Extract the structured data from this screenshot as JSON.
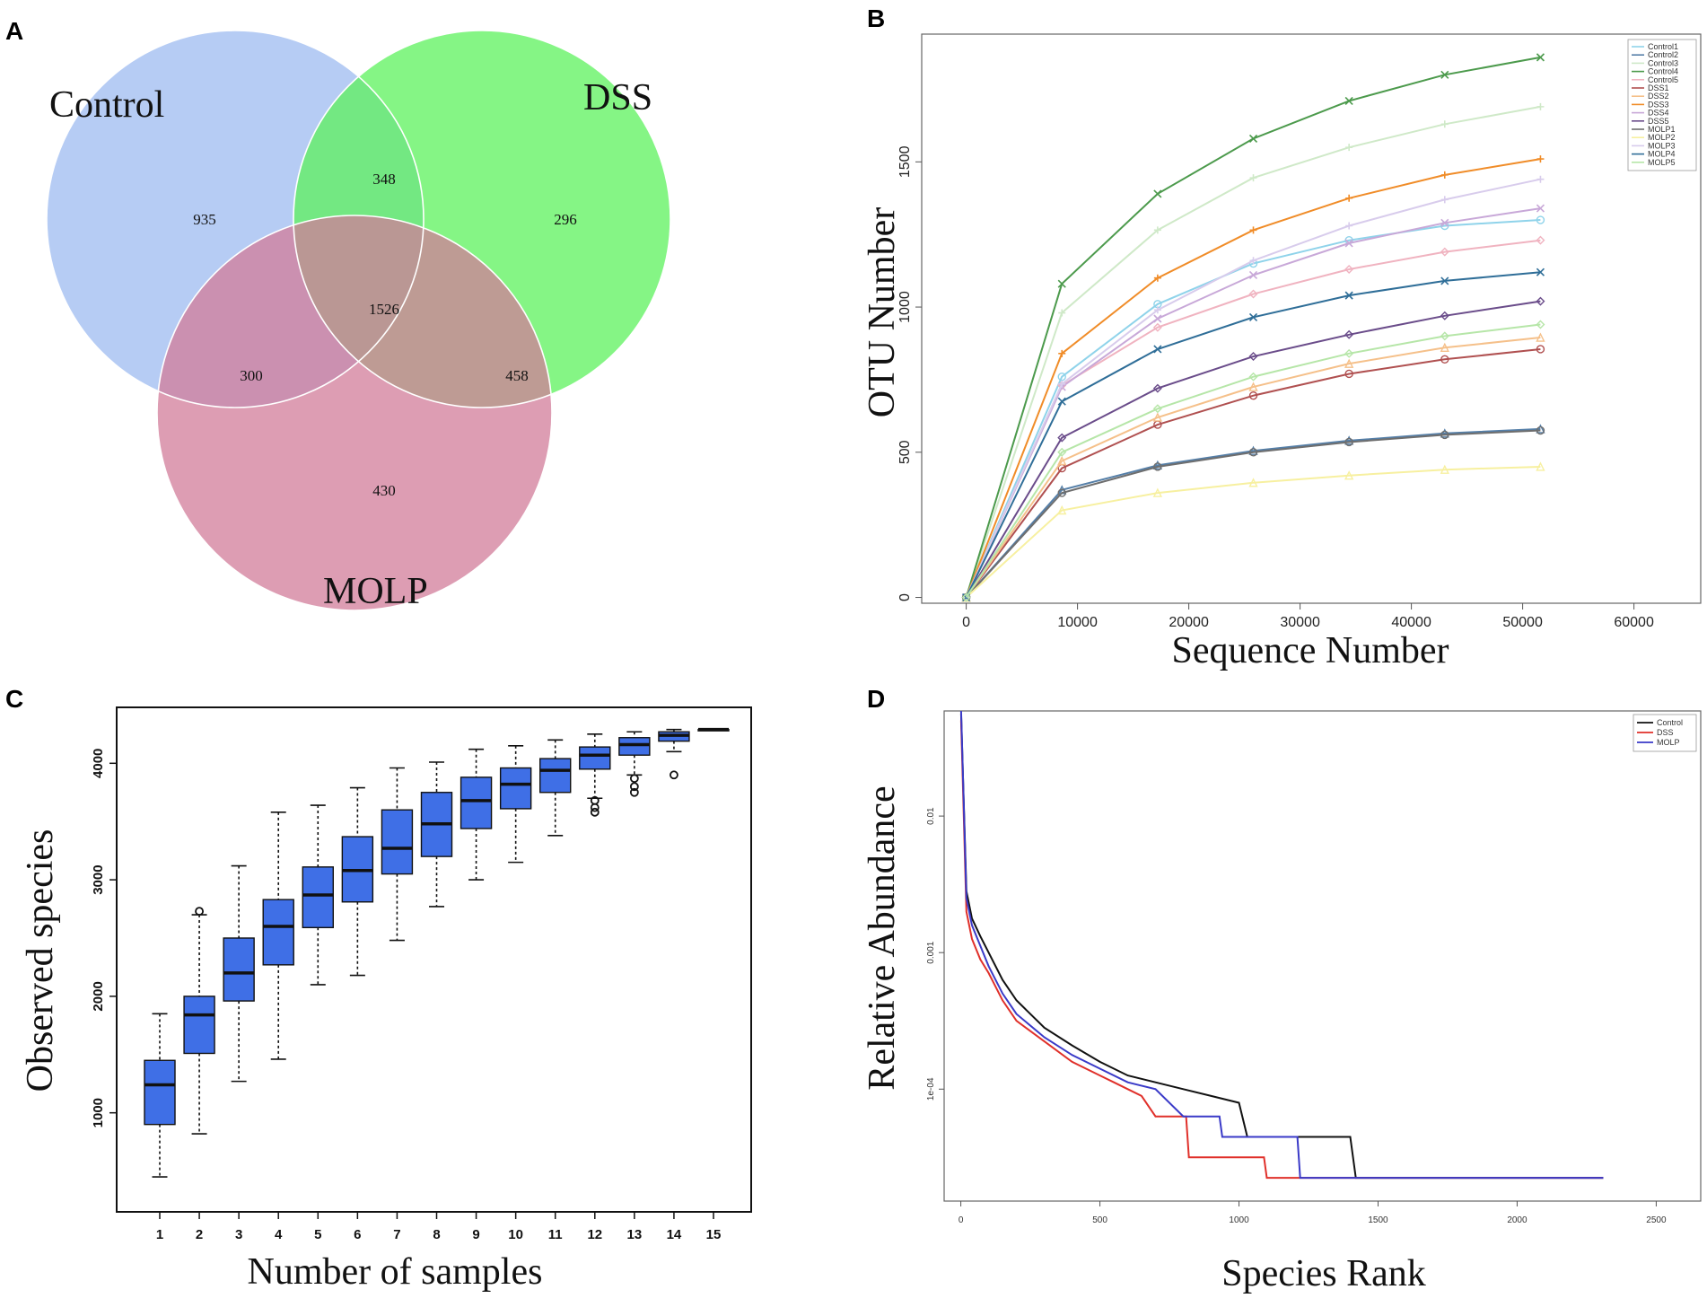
{
  "panels": {
    "a": "A",
    "b": "B",
    "c": "C",
    "d": "D"
  },
  "venn": {
    "labels": {
      "control": "Control",
      "dss": "DSS",
      "molp": "MOLP"
    },
    "colors": {
      "control": "#9dbbf0",
      "dss": "#5cf25c",
      "molp": "#d27c9a"
    },
    "counts": {
      "control_only": "935",
      "dss_only": "296",
      "molp_only": "430",
      "control_dss": "348",
      "control_molp": "300",
      "dss_molp": "458",
      "all": "1526"
    }
  },
  "chart_data": [
    {
      "panel": "B",
      "type": "line",
      "xlabel": "Sequence Number",
      "ylabel": "OTU Number",
      "xlim": [
        -4000,
        66000
      ],
      "ylim": [
        -20,
        1940
      ],
      "xticks": [
        0,
        10000,
        20000,
        30000,
        40000,
        50000,
        60000
      ],
      "yticks": [
        0,
        500,
        1000,
        1500
      ],
      "x": [
        0,
        8600,
        17200,
        25800,
        34400,
        43000,
        51600
      ],
      "series": [
        {
          "name": "Control1",
          "color": "#8fd3ea",
          "values": [
            0,
            760,
            1010,
            1150,
            1230,
            1280,
            1300
          ]
        },
        {
          "name": "Control2",
          "color": "#557fa8",
          "values": [
            0,
            370,
            455,
            505,
            540,
            565,
            580
          ]
        },
        {
          "name": "Control3",
          "color": "#cfe9c8",
          "values": [
            0,
            980,
            1265,
            1445,
            1550,
            1630,
            1690
          ]
        },
        {
          "name": "Control4",
          "color": "#4c9a4c",
          "values": [
            0,
            1080,
            1390,
            1580,
            1710,
            1800,
            1860
          ]
        },
        {
          "name": "Control5",
          "color": "#f0b3c0",
          "values": [
            0,
            730,
            930,
            1045,
            1130,
            1190,
            1230
          ]
        },
        {
          "name": "DSS1",
          "color": "#b05050",
          "values": [
            0,
            445,
            595,
            695,
            770,
            820,
            855
          ]
        },
        {
          "name": "DSS2",
          "color": "#f5c08a",
          "values": [
            0,
            470,
            620,
            725,
            805,
            860,
            895
          ]
        },
        {
          "name": "DSS3",
          "color": "#f08c28",
          "values": [
            0,
            840,
            1100,
            1265,
            1375,
            1455,
            1510
          ]
        },
        {
          "name": "DSS4",
          "color": "#c8a8d8",
          "values": [
            0,
            725,
            960,
            1110,
            1220,
            1290,
            1340
          ]
        },
        {
          "name": "DSS5",
          "color": "#6a4c8a",
          "values": [
            0,
            550,
            720,
            830,
            905,
            970,
            1020
          ]
        },
        {
          "name": "MOLP1",
          "color": "#6e6e6e",
          "values": [
            0,
            360,
            450,
            500,
            535,
            560,
            575
          ]
        },
        {
          "name": "MOLP2",
          "color": "#f7f0a0",
          "values": [
            0,
            300,
            360,
            395,
            420,
            440,
            450
          ]
        },
        {
          "name": "MOLP3",
          "color": "#d8ccec",
          "values": [
            0,
            735,
            990,
            1160,
            1280,
            1370,
            1440
          ]
        },
        {
          "name": "MOLP4",
          "color": "#2f6e98",
          "values": [
            0,
            675,
            855,
            965,
            1040,
            1090,
            1120
          ]
        },
        {
          "name": "MOLP5",
          "color": "#b6e6a8",
          "values": [
            0,
            500,
            650,
            760,
            840,
            900,
            940
          ]
        }
      ]
    },
    {
      "panel": "C",
      "type": "box",
      "xlabel": "Number of samples",
      "ylabel": "Observed species",
      "ylim": [
        150,
        4480
      ],
      "yticks": [
        1000,
        2000,
        3000,
        4000
      ],
      "categories": [
        "1",
        "2",
        "3",
        "4",
        "5",
        "6",
        "7",
        "8",
        "9",
        "10",
        "11",
        "12",
        "13",
        "14",
        "15"
      ],
      "box_color": "#3f6fe6",
      "boxes": [
        {
          "min": 450,
          "q1": 900,
          "median": 1240,
          "q3": 1450,
          "max": 1850
        },
        {
          "min": 820,
          "q1": 1510,
          "median": 1840,
          "q3": 2000,
          "max": 2700
        },
        {
          "min": 1270,
          "q1": 1960,
          "median": 2200,
          "q3": 2500,
          "max": 3120
        },
        {
          "min": 1460,
          "q1": 2270,
          "median": 2600,
          "q3": 2830,
          "max": 3580
        },
        {
          "min": 2100,
          "q1": 2590,
          "median": 2870,
          "q3": 3110,
          "max": 3640
        },
        {
          "min": 2180,
          "q1": 2810,
          "median": 3080,
          "q3": 3370,
          "max": 3790
        },
        {
          "min": 2480,
          "q1": 3050,
          "median": 3270,
          "q3": 3600,
          "max": 3960
        },
        {
          "min": 2770,
          "q1": 3200,
          "median": 3480,
          "q3": 3750,
          "max": 4010
        },
        {
          "min": 3000,
          "q1": 3440,
          "median": 3680,
          "q3": 3880,
          "max": 4120
        },
        {
          "min": 3150,
          "q1": 3610,
          "median": 3820,
          "q3": 3960,
          "max": 4150
        },
        {
          "min": 3380,
          "q1": 3750,
          "median": 3940,
          "q3": 4040,
          "max": 4200
        },
        {
          "min": 3700,
          "q1": 3950,
          "median": 4070,
          "q3": 4140,
          "max": 4250
        },
        {
          "min": 3900,
          "q1": 4070,
          "median": 4160,
          "q3": 4220,
          "max": 4270
        },
        {
          "min": 4100,
          "q1": 4190,
          "median": 4240,
          "q3": 4270,
          "max": 4290
        },
        {
          "min": 4290,
          "q1": 4290,
          "median": 4290,
          "q3": 4290,
          "max": 4290
        }
      ],
      "outliers": [
        {
          "box": "2",
          "value": 2730
        },
        {
          "box": "12",
          "value": 3680
        },
        {
          "box": "12",
          "value": 3620
        },
        {
          "box": "12",
          "value": 3580
        },
        {
          "box": "13",
          "value": 3870
        },
        {
          "box": "13",
          "value": 3800
        },
        {
          "box": "13",
          "value": 3750
        },
        {
          "box": "14",
          "value": 3900
        }
      ]
    },
    {
      "panel": "D",
      "type": "line",
      "scale": "log",
      "xlabel": "Species Rank",
      "ylabel": "Relative Abundance",
      "xlim": [
        -60,
        2660
      ],
      "ylim_log10": [
        -4.82,
        -1.23
      ],
      "xticks": [
        0,
        500,
        1000,
        1500,
        2000,
        2500
      ],
      "yticks": [
        {
          "label": "0.01",
          "log10": -2
        },
        {
          "label": "0.001",
          "log10": -3
        },
        {
          "label": "1e-04",
          "log10": -4
        }
      ],
      "series": [
        {
          "name": "Control",
          "color": "#111111",
          "x": [
            1,
            20,
            40,
            70,
            100,
            150,
            200,
            300,
            400,
            500,
            600,
            700,
            800,
            900,
            1000,
            1030,
            1400,
            1420,
            2310
          ],
          "log10": [
            -1.25,
            -2.55,
            -2.75,
            -2.88,
            -3.0,
            -3.2,
            -3.35,
            -3.55,
            -3.68,
            -3.8,
            -3.9,
            -3.95,
            -4.0,
            -4.05,
            -4.1,
            -4.35,
            -4.35,
            -4.65,
            -4.65
          ]
        },
        {
          "name": "DSS",
          "color": "#e0302a",
          "x": [
            1,
            20,
            40,
            70,
            100,
            150,
            200,
            300,
            400,
            500,
            550,
            600,
            650,
            700,
            810,
            820,
            1090,
            1100,
            2310
          ],
          "log10": [
            -1.3,
            -2.7,
            -2.9,
            -3.05,
            -3.15,
            -3.35,
            -3.5,
            -3.65,
            -3.8,
            -3.9,
            -3.95,
            -4.0,
            -4.05,
            -4.2,
            -4.2,
            -4.5,
            -4.5,
            -4.65,
            -4.65
          ]
        },
        {
          "name": "MOLP",
          "color": "#3a3ac8",
          "x": [
            1,
            20,
            40,
            70,
            100,
            150,
            200,
            300,
            400,
            500,
            600,
            700,
            800,
            930,
            940,
            1210,
            1220,
            2310
          ],
          "log10": [
            -1.23,
            -2.6,
            -2.8,
            -2.95,
            -3.1,
            -3.3,
            -3.45,
            -3.62,
            -3.75,
            -3.85,
            -3.95,
            -4.0,
            -4.2,
            -4.2,
            -4.35,
            -4.35,
            -4.65,
            -4.65
          ]
        }
      ]
    }
  ]
}
